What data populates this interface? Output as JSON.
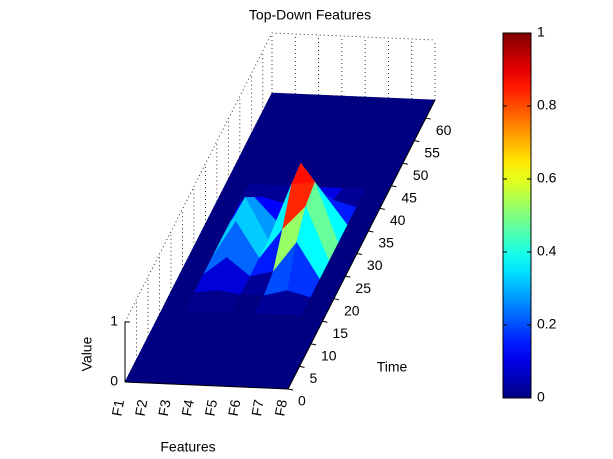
{
  "chart_data": {
    "type": "surface",
    "title": "Top-Down Features",
    "xlabel": "Features",
    "ylabel": "Time",
    "zlabel": "Value",
    "categories": [
      "F1",
      "F2",
      "F3",
      "F4",
      "F5",
      "F6",
      "F7",
      "F8"
    ],
    "y": [
      0,
      4,
      8,
      12,
      16,
      20,
      24,
      28,
      32,
      36,
      40,
      44,
      48,
      52,
      56,
      60,
      64
    ],
    "z": [
      [
        0,
        0,
        0,
        0,
        0,
        0,
        0,
        0,
        0,
        0,
        0,
        0,
        0,
        0,
        0,
        0,
        0
      ],
      [
        0,
        0,
        0,
        0,
        0,
        0,
        0,
        0,
        0,
        0,
        0,
        0,
        0,
        0,
        0,
        0,
        0
      ],
      [
        0,
        0,
        0,
        0,
        0,
        0.05,
        0.3,
        0.6,
        0.7,
        0.4,
        0.1,
        0,
        0,
        0,
        0,
        0,
        0
      ],
      [
        0,
        0,
        0,
        0,
        0,
        0,
        0,
        0,
        0,
        0,
        0,
        0,
        0,
        0,
        0,
        0,
        0
      ],
      [
        0,
        0,
        0,
        0,
        0,
        0,
        0.1,
        0.5,
        0.95,
        1,
        0.3,
        0,
        0,
        0,
        0,
        0,
        0
      ],
      [
        0,
        0,
        0,
        0,
        0,
        0.1,
        0.6,
        0.9,
        1,
        0.5,
        0.1,
        0,
        0,
        0,
        0,
        0,
        0
      ],
      [
        0,
        0,
        0,
        0,
        0,
        0,
        0,
        0,
        0,
        0,
        0,
        0,
        0,
        0,
        0,
        0,
        0
      ],
      [
        0,
        0,
        0,
        0,
        0,
        0,
        0,
        0,
        0,
        0,
        0,
        0,
        0,
        0,
        0,
        0,
        0
      ]
    ],
    "ylim": [
      0,
      64
    ],
    "yticks": [
      0,
      5,
      10,
      15,
      20,
      25,
      30,
      35,
      40,
      45,
      50,
      55,
      60
    ],
    "zlim": [
      0,
      1
    ],
    "zticks": [
      0,
      1
    ],
    "grid": true,
    "colormap": "jet",
    "clim": [
      0,
      1
    ],
    "colorbar_ticks": [
      0,
      0.2,
      0.4,
      0.6,
      0.8,
      1
    ]
  }
}
